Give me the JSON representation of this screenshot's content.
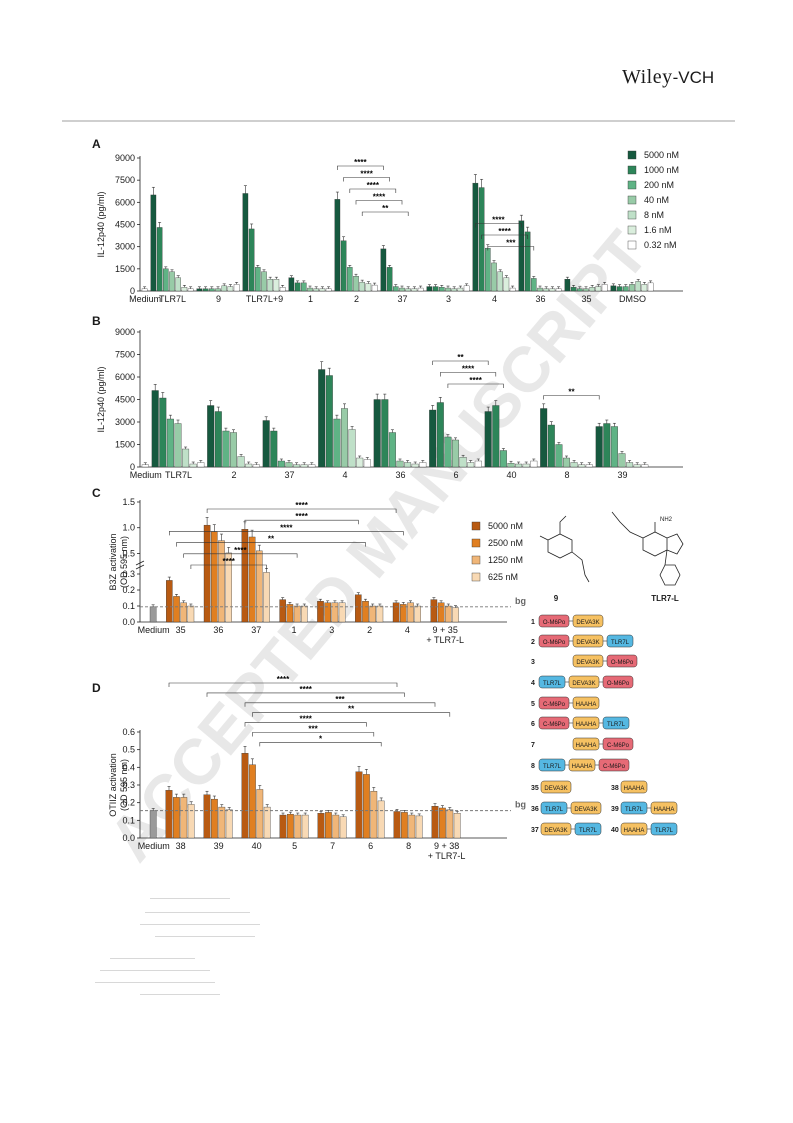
{
  "header": {
    "logo_main": "Wiley",
    "logo_suffix": "-VCH"
  },
  "watermark": "ACCEPTED MANUSCRIPT",
  "colors": {
    "green": [
      "#16593f",
      "#2d8559",
      "#5fb385",
      "#98cba7",
      "#bfe0c8",
      "#daeedd",
      "#ffffff"
    ],
    "orange": [
      "#b85a12",
      "#e07f21",
      "#f0b678",
      "#f8d9b4"
    ],
    "medium_bar": "#9a9a9a",
    "bg_line": "#777777"
  },
  "chart_data": [
    {
      "panel": "A",
      "type": "bar",
      "ylabel": "IL-12p40 (pg/ml)",
      "ylim": [
        0,
        9000
      ],
      "yticks": [
        0,
        1500,
        3000,
        4500,
        6000,
        7500,
        9000
      ],
      "legend_position": "top-right",
      "series_names": [
        "5000 nM",
        "1000 nM",
        "200 nM",
        "40 nM",
        "8 nM",
        "1.6 nM",
        "0.32 nM"
      ],
      "groups": [
        {
          "label": "Medium",
          "values": [
            150
          ]
        },
        {
          "label": "TLR7L",
          "values": [
            6500,
            4300,
            1500,
            1300,
            900,
            250,
            150
          ]
        },
        {
          "label": "9",
          "values": [
            150,
            150,
            150,
            150,
            350,
            300,
            450
          ]
        },
        {
          "label": "TLR7L+9",
          "values": [
            6600,
            4200,
            1600,
            1300,
            800,
            800,
            250
          ]
        },
        {
          "label": "1",
          "values": [
            900,
            550,
            550,
            200,
            150,
            150,
            150
          ]
        },
        {
          "label": "2",
          "values": [
            6200,
            3400,
            1600,
            1000,
            600,
            500,
            400
          ]
        },
        {
          "label": "37",
          "values": [
            2850,
            1600,
            300,
            200,
            150,
            150,
            200
          ]
        },
        {
          "label": "3",
          "values": [
            300,
            300,
            250,
            200,
            150,
            200,
            350
          ]
        },
        {
          "label": "4",
          "values": [
            7300,
            7000,
            2900,
            1900,
            1300,
            900,
            200
          ]
        },
        {
          "label": "36",
          "values": [
            4750,
            4000,
            850,
            200,
            150,
            150,
            150
          ]
        },
        {
          "label": "35",
          "values": [
            800,
            250,
            150,
            150,
            250,
            300,
            450
          ]
        },
        {
          "label": "DMSO",
          "values": [
            350,
            300,
            300,
            450,
            650,
            450,
            550
          ]
        }
      ],
      "significance": [
        {
          "from": [
            5,
            0
          ],
          "to": [
            6,
            0
          ],
          "label": "****"
        },
        {
          "from": [
            5,
            1
          ],
          "to": [
            6,
            1
          ],
          "label": "****"
        },
        {
          "from": [
            5,
            2
          ],
          "to": [
            6,
            2
          ],
          "label": "****"
        },
        {
          "from": [
            5,
            3
          ],
          "to": [
            6,
            3
          ],
          "label": "****"
        },
        {
          "from": [
            5,
            4
          ],
          "to": [
            6,
            4
          ],
          "label": "**"
        },
        {
          "from": [
            8,
            0
          ],
          "to": [
            9,
            0
          ],
          "label": "****"
        },
        {
          "from": [
            8,
            1
          ],
          "to": [
            9,
            1
          ],
          "label": "****"
        },
        {
          "from": [
            8,
            2
          ],
          "to": [
            9,
            2
          ],
          "label": "***"
        }
      ]
    },
    {
      "panel": "B",
      "type": "bar",
      "ylabel": "IL-12p40 (pg/ml)",
      "ylim": [
        0,
        9000
      ],
      "yticks": [
        0,
        1500,
        3000,
        4500,
        6000,
        7500,
        9000
      ],
      "groups": [
        {
          "label": "Medium",
          "values": [
            150
          ]
        },
        {
          "label": "TLR7L",
          "values": [
            5100,
            4600,
            3200,
            2900,
            1200,
            200,
            300
          ]
        },
        {
          "label": "2",
          "values": [
            4100,
            3700,
            2400,
            2300,
            700,
            200,
            150
          ]
        },
        {
          "label": "37",
          "values": [
            3100,
            2400,
            400,
            300,
            150,
            150,
            150
          ]
        },
        {
          "label": "4",
          "values": [
            6500,
            6100,
            3200,
            3900,
            2500,
            600,
            500
          ]
        },
        {
          "label": "36",
          "values": [
            4500,
            4500,
            2300,
            400,
            300,
            200,
            300
          ]
        },
        {
          "label": "6",
          "values": [
            3800,
            4300,
            2000,
            1800,
            650,
            300,
            400
          ]
        },
        {
          "label": "40",
          "values": [
            3700,
            4100,
            1100,
            250,
            200,
            200,
            400
          ]
        },
        {
          "label": "8",
          "values": [
            3900,
            2800,
            1500,
            600,
            300,
            150,
            150
          ]
        },
        {
          "label": "39",
          "values": [
            2700,
            2900,
            2700,
            900,
            300,
            150,
            150
          ]
        }
      ],
      "significance": [
        {
          "from": [
            6,
            0
          ],
          "to": [
            7,
            0
          ],
          "label": "**"
        },
        {
          "from": [
            6,
            1
          ],
          "to": [
            7,
            1
          ],
          "label": "****"
        },
        {
          "from": [
            6,
            2
          ],
          "to": [
            7,
            2
          ],
          "label": "****"
        },
        {
          "from": [
            8,
            0
          ],
          "to": [
            9,
            0
          ],
          "label": "**"
        }
      ]
    },
    {
      "panel": "C",
      "type": "bar",
      "ylabel": "B3Z activation",
      "ylabel2": "(OD 595 nm)",
      "ylim": [
        0,
        1.5
      ],
      "yaxis_break": [
        0.35,
        0.45
      ],
      "yticks_low": [
        0.0,
        0.1,
        0.2,
        0.3
      ],
      "yticks_high": [
        0.5,
        1.0,
        1.5
      ],
      "legend_position": "top-right",
      "series_names": [
        "5000 nM",
        "2500 nM",
        "1250 nM",
        "625 nM"
      ],
      "bg_label": "bg",
      "bg_value": 0.095,
      "groups": [
        {
          "label": "Medium",
          "values": [
            0.095
          ]
        },
        {
          "label": "35",
          "values": [
            0.26,
            0.16,
            0.12,
            0.1
          ]
        },
        {
          "label": "36",
          "values": [
            1.05,
            0.92,
            0.75,
            0.51
          ]
        },
        {
          "label": "37",
          "values": [
            0.97,
            0.82,
            0.55,
            0.31
          ]
        },
        {
          "label": "1",
          "values": [
            0.14,
            0.11,
            0.1,
            0.1
          ]
        },
        {
          "label": "3",
          "values": [
            0.13,
            0.12,
            0.12,
            0.12
          ]
        },
        {
          "label": "2",
          "values": [
            0.17,
            0.13,
            0.1,
            0.1
          ]
        },
        {
          "label": "4",
          "values": [
            0.12,
            0.11,
            0.12,
            0.1
          ]
        },
        {
          "label": "9 + 35",
          "label2": "+ TLR7-L",
          "values": [
            0.14,
            0.12,
            0.1,
            0.09
          ]
        }
      ],
      "significance": [
        {
          "from": [
            2,
            0
          ],
          "to": [
            7,
            0
          ],
          "label": "****"
        },
        {
          "from": [
            3,
            0
          ],
          "to": [
            6,
            0
          ],
          "label": "****"
        },
        {
          "from": [
            1,
            0
          ],
          "to": [
            7,
            1
          ],
          "label": "****"
        },
        {
          "from": [
            1,
            1
          ],
          "to": [
            6,
            1
          ],
          "label": "**"
        },
        {
          "from": [
            1,
            2
          ],
          "to": [
            4,
            2
          ],
          "label": "****"
        },
        {
          "from": [
            1,
            3
          ],
          "to": [
            3,
            3
          ],
          "label": "****"
        }
      ]
    },
    {
      "panel": "D",
      "type": "bar",
      "ylabel": "OTIIZ activation",
      "ylabel2": "(OD 595 nm)",
      "ylim": [
        0,
        0.6
      ],
      "yticks": [
        0.0,
        0.1,
        0.2,
        0.3,
        0.4,
        0.5,
        0.6
      ],
      "bg_label": "bg",
      "bg_value": 0.155,
      "groups": [
        {
          "label": "Medium",
          "values": [
            0.155
          ]
        },
        {
          "label": "38",
          "values": [
            0.27,
            0.23,
            0.23,
            0.19
          ]
        },
        {
          "label": "39",
          "values": [
            0.245,
            0.22,
            0.175,
            0.16
          ]
        },
        {
          "label": "40",
          "values": [
            0.48,
            0.415,
            0.275,
            0.175
          ]
        },
        {
          "label": "5",
          "values": [
            0.13,
            0.135,
            0.13,
            0.13
          ]
        },
        {
          "label": "7",
          "values": [
            0.14,
            0.145,
            0.13,
            0.12
          ]
        },
        {
          "label": "6",
          "values": [
            0.375,
            0.36,
            0.265,
            0.21
          ]
        },
        {
          "label": "8",
          "values": [
            0.15,
            0.145,
            0.13,
            0.125
          ]
        },
        {
          "label": "9 + 38",
          "label2": "+ TLR7-L",
          "values": [
            0.18,
            0.17,
            0.16,
            0.14
          ]
        }
      ],
      "significance": [
        {
          "from": [
            1,
            0
          ],
          "to": [
            7,
            0
          ],
          "label": "****"
        },
        {
          "from": [
            2,
            0
          ],
          "to": [
            7,
            1
          ],
          "label": "****"
        },
        {
          "from": [
            3,
            0
          ],
          "to": [
            8,
            0
          ],
          "label": "***"
        },
        {
          "from": [
            3,
            1
          ],
          "to": [
            8,
            2
          ],
          "label": "**"
        },
        {
          "from": [
            3,
            0
          ],
          "to": [
            6,
            1
          ],
          "label": "****"
        },
        {
          "from": [
            3,
            1
          ],
          "to": [
            6,
            2
          ],
          "label": "***"
        },
        {
          "from": [
            3,
            2
          ],
          "to": [
            6,
            3
          ],
          "label": "*"
        }
      ]
    }
  ],
  "structures": {
    "compound_9": "9",
    "tlr7l": "TLR7-L",
    "nh2": "NH2"
  },
  "constructs_legend": [
    {
      "num": "1",
      "blocks": [
        "O-M6Po",
        "DEVA3K"
      ]
    },
    {
      "num": "2",
      "blocks": [
        "O-M6Po",
        "DEVA3K",
        "TLR7L"
      ]
    },
    {
      "num": "3",
      "blocks": [
        "",
        "DEVA3K",
        "O-M6Po"
      ]
    },
    {
      "num": "4",
      "blocks": [
        "TLR7L",
        "DEVA3K",
        "O-M6Po"
      ]
    },
    {
      "num": "5",
      "blocks": [
        "C-M6Po",
        "HAAHA"
      ]
    },
    {
      "num": "6",
      "blocks": [
        "C-M6Po",
        "HAAHA",
        "TLR7L"
      ]
    },
    {
      "num": "7",
      "blocks": [
        "",
        "HAAHA",
        "C-M6Po"
      ]
    },
    {
      "num": "8",
      "blocks": [
        "TLR7L",
        "HAAHA",
        "C-M6Po"
      ]
    },
    {
      "num": "35",
      "blocks": [
        "DEVA3K"
      ]
    },
    {
      "num": "38",
      "blocks": [
        "HAAHA"
      ]
    },
    {
      "num": "36",
      "blocks": [
        "TLR7L",
        "DEVA3K"
      ]
    },
    {
      "num": "39",
      "blocks": [
        "TLR7L",
        "HAAHA"
      ]
    },
    {
      "num": "37",
      "blocks": [
        "DEVA3K",
        "TLR7L"
      ]
    },
    {
      "num": "40",
      "blocks": [
        "HAAHA",
        "TLR7L"
      ]
    }
  ]
}
